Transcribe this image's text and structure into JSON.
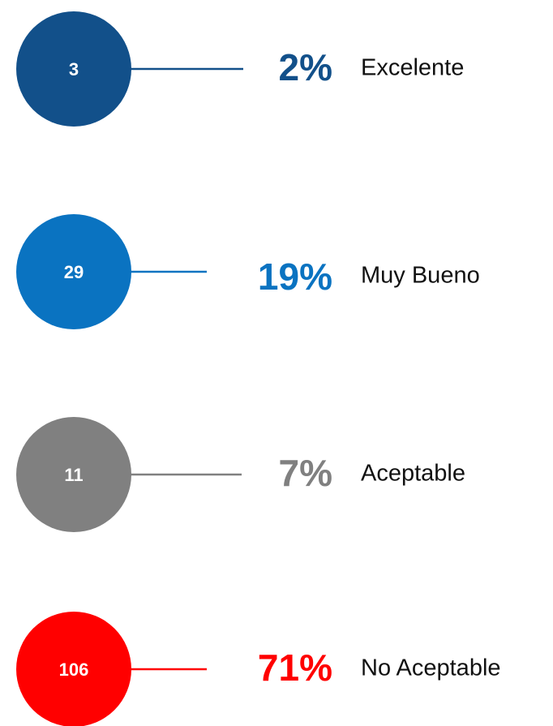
{
  "items": [
    {
      "count": "3",
      "percent": "2%",
      "label": "Excelente",
      "color": "#12508a"
    },
    {
      "count": "29",
      "percent": "19%",
      "label": "Muy Bueno",
      "color": "#0a73c1"
    },
    {
      "count": "11",
      "percent": "7%",
      "label": "Aceptable",
      "color": "#808080"
    },
    {
      "count": "106",
      "percent": "71%",
      "label": "No Aceptable",
      "color": "#ff0000"
    }
  ]
}
